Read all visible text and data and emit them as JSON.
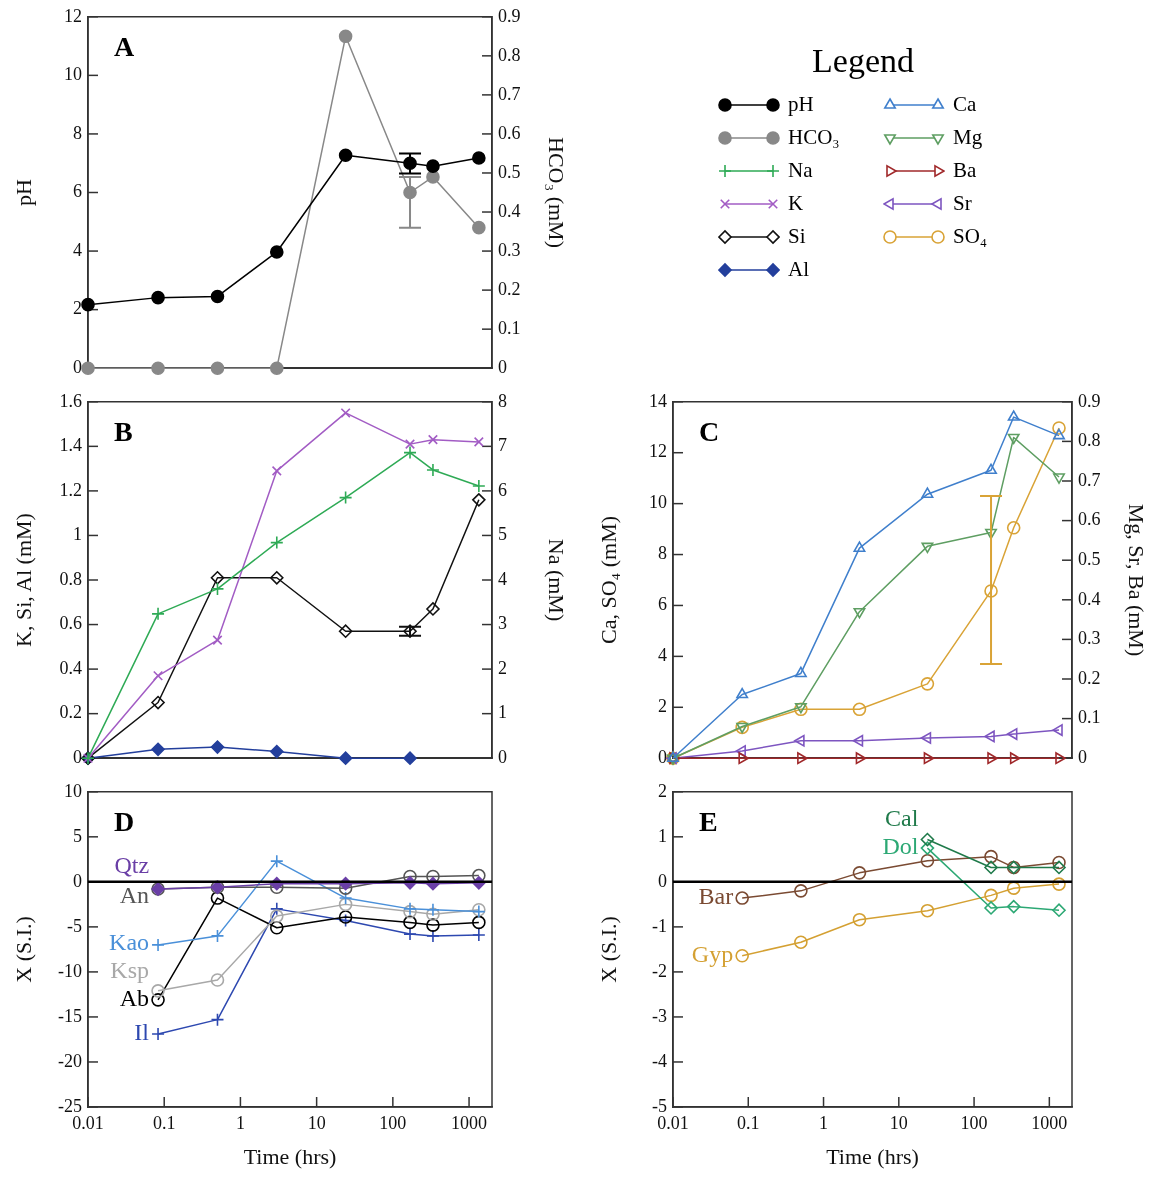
{
  "chart_data": [
    {
      "type": "line",
      "title": "A",
      "ylabel": "pH",
      "y2label": "HCO₃ (mM)",
      "legend": "right",
      "legend_title": "Legend",
      "log": "x",
      "tick_labels": "y",
      "x": [
        0.01,
        0.083,
        0.5,
        3,
        24,
        168,
        336,
        1344
      ],
      "xlim": [
        0.01,
        2000
      ],
      "xticks": [
        0.01,
        0.1,
        1,
        10,
        100,
        1000
      ],
      "ylim": [
        0,
        12
      ],
      "yticks": [
        0,
        2,
        4,
        6,
        8,
        10,
        12
      ],
      "y2lim": [
        0,
        0.9
      ],
      "y2ticks": [
        0,
        0.1,
        0.2,
        0.3,
        0.4,
        0.5,
        0.6,
        0.7,
        0.8,
        0.9
      ],
      "series": [
        {
          "name": "pH",
          "color": "#000000",
          "marker": "circle",
          "values": [
            2.17,
            2.41,
            2.45,
            3.97,
            7.27,
            7.0,
            6.9,
            7.18
          ],
          "errors": [
            null,
            null,
            null,
            null,
            null,
            [
              6.65,
              7.33
            ],
            null,
            null
          ]
        },
        {
          "name": "HCO₃",
          "color": "#888888",
          "marker": "circle",
          "axis": "y2",
          "values": [
            0,
            0,
            0,
            0,
            0.85,
            0.45,
            0.49,
            0.36
          ],
          "errors": [
            null,
            null,
            null,
            null,
            null,
            [
              0.36,
              0.49
            ],
            null,
            null
          ]
        }
      ]
    },
    {
      "type": "line",
      "title": "B",
      "ylabel": "K, Si, Al (mM)",
      "y2label": "Na (mM)",
      "legend": "top right",
      "log": "x",
      "tick_labels": "y",
      "x": [
        0.01,
        0.083,
        0.5,
        3,
        24,
        168,
        336,
        1344
      ],
      "xlim": [
        0.01,
        2000
      ],
      "xticks": [
        0.01,
        0.1,
        1,
        10,
        100,
        1000
      ],
      "ylim": [
        0,
        1.6
      ],
      "yticks": [
        0,
        0.2,
        0.4,
        0.6,
        0.8,
        1,
        1.2,
        1.4,
        1.6
      ],
      "y2lim": [
        0,
        8
      ],
      "y2ticks": [
        0,
        1,
        2,
        3,
        4,
        5,
        6,
        7,
        8
      ],
      "series": [
        {
          "name": "Na",
          "color": "#2eaa55",
          "marker": "cross",
          "axis": "y2",
          "values": [
            0,
            3.24,
            3.8,
            4.84,
            5.85,
            6.86,
            6.47,
            6.11
          ]
        },
        {
          "name": "K",
          "color": "#a25cc4",
          "marker": "x",
          "values": [
            0,
            0.37,
            0.53,
            1.29,
            1.55,
            1.41,
            1.43,
            1.42
          ]
        },
        {
          "name": "Si",
          "color": "#111111",
          "marker": "diamond-open",
          "values": [
            0,
            0.25,
            0.81,
            0.81,
            0.57,
            0.57,
            0.67,
            1.16
          ],
          "errors": [
            null,
            null,
            null,
            null,
            null,
            [
              0.55,
              0.59
            ],
            null,
            null
          ]
        },
        {
          "name": "Al",
          "color": "#233f9c",
          "marker": "diamond",
          "values": [
            0,
            0.04,
            0.05,
            0.03,
            0,
            0,
            null,
            null
          ]
        }
      ]
    },
    {
      "type": "line",
      "title": "C",
      "ylabel": "Ca, SO₄ (mM)",
      "y2label": "Mg, Sr, Ba (mM)",
      "legend": "top",
      "log": "x",
      "tick_labels": "y",
      "x": [
        0.01,
        0.083,
        0.5,
        3,
        24,
        168,
        336,
        1344
      ],
      "xlim": [
        0.01,
        2000
      ],
      "xticks": [
        0.01,
        0.1,
        1,
        10,
        100,
        1000
      ],
      "ylim": [
        0,
        14
      ],
      "yticks": [
        0,
        2,
        4,
        6,
        8,
        10,
        12,
        14
      ],
      "y2lim": [
        0,
        0.9
      ],
      "y2ticks": [
        0,
        0.1,
        0.2,
        0.3,
        0.4,
        0.5,
        0.6,
        0.7,
        0.8,
        0.9
      ],
      "series": [
        {
          "name": "Ca",
          "color": "#3f7fcc",
          "marker": "triangle",
          "values": [
            0,
            2.5,
            3.33,
            8.25,
            10.37,
            11.31,
            13.4,
            12.67
          ]
        },
        {
          "name": "Mg",
          "color": "#5e9e62",
          "marker": "triangle-down",
          "axis": "y2",
          "values": [
            0,
            0.08,
            0.13,
            0.37,
            0.535,
            0.57,
            0.81,
            0.71
          ]
        },
        {
          "name": "Ba",
          "color": "#a0282a",
          "marker": "triangle-right",
          "axis": "y2",
          "values": [
            0,
            0,
            0,
            0,
            0,
            0,
            0,
            0
          ]
        },
        {
          "name": "Sr",
          "color": "#7d55c0",
          "marker": "triangle-left",
          "axis": "y2",
          "values": [
            0,
            0.018,
            0.044,
            0.044,
            0.051,
            0.055,
            0.061,
            0.071
          ]
        },
        {
          "name": "SO₄",
          "color": "#d9a336",
          "marker": "circle-open",
          "values": [
            0,
            1.21,
            1.92,
            1.92,
            2.92,
            6.57,
            9.05,
            12.97
          ],
          "errors": [
            null,
            null,
            null,
            null,
            null,
            [
              3.7,
              10.3
            ],
            null,
            null
          ]
        }
      ]
    },
    {
      "type": "line",
      "title": "D",
      "xlabel": "Time (hrs)",
      "ylabel": "X (S.I.)",
      "log": "x",
      "x": [
        0.083,
        0.5,
        3,
        24,
        168,
        336,
        1344
      ],
      "xlim": [
        0.01,
        2000
      ],
      "xticks": [
        0.01,
        0.1,
        1,
        10,
        100,
        1000
      ],
      "ylim": [
        -25,
        10
      ],
      "yticks": [
        -25,
        -20,
        -15,
        -10,
        -5,
        0,
        5,
        10
      ],
      "ref_lines": [
        {
          "axis": "y",
          "value": 0,
          "color": "#000000"
        }
      ],
      "series": [
        {
          "name": "Qtz",
          "color": "#6a3fa6",
          "marker": "diamond",
          "values": [
            -0.8,
            -0.6,
            -0.2,
            -0.2,
            -0.1,
            -0.2,
            -0.1
          ]
        },
        {
          "name": "An",
          "color": "#555555",
          "marker": "circle-open",
          "values": [
            -0.8,
            -0.6,
            -0.6,
            -0.7,
            0.6,
            0.6,
            0.7
          ]
        },
        {
          "name": "Kao",
          "color": "#4a90d9",
          "marker": "cross",
          "values": [
            -7.0,
            -6.0,
            2.3,
            -1.8,
            -3.0,
            -3.1,
            -3.3
          ]
        },
        {
          "name": "Ksp",
          "color": "#a8a8a8",
          "marker": "circle-open",
          "values": [
            -12.1,
            -10.9,
            -3.8,
            -2.5,
            -3.3,
            -3.6,
            -3.1
          ]
        },
        {
          "name": "Ab",
          "color": "#000000",
          "marker": "circle-open",
          "values": [
            -13.1,
            -1.8,
            -5.1,
            -3.9,
            -4.5,
            -4.8,
            -4.5
          ]
        },
        {
          "name": "Il",
          "color": "#2d48b0",
          "marker": "cross",
          "values": [
            -16.9,
            -15.3,
            -3.0,
            -4.3,
            -5.8,
            -6.0,
            -5.9
          ]
        }
      ]
    },
    {
      "type": "line",
      "title": "E",
      "xlabel": "Time (hrs)",
      "ylabel": "X (S.I.)",
      "log": "x",
      "x": [
        0.083,
        0.5,
        3,
        24,
        168,
        336,
        1344
      ],
      "xlim": [
        0.01,
        2000
      ],
      "xticks": [
        0.01,
        0.1,
        1,
        10,
        100,
        1000
      ],
      "ylim": [
        -5,
        2
      ],
      "yticks": [
        -5,
        -4,
        -3,
        -2,
        -1,
        0,
        1,
        2
      ],
      "ref_lines": [
        {
          "axis": "y",
          "value": 0,
          "color": "#000000"
        }
      ],
      "series": [
        {
          "name": "Cal",
          "color": "#1f7a4a",
          "marker": "diamond-open",
          "values": [
            null,
            null,
            null,
            0.94,
            0.32,
            0.32,
            0.32
          ]
        },
        {
          "name": "Dol",
          "color": "#2ca874",
          "marker": "diamond-open",
          "values": [
            null,
            null,
            null,
            0.75,
            -0.58,
            -0.55,
            -0.63
          ]
        },
        {
          "name": "Bar",
          "color": "#7a4a32",
          "marker": "circle-open",
          "values": [
            -0.36,
            -0.2,
            0.2,
            0.47,
            0.56,
            0.32,
            0.43
          ]
        },
        {
          "name": "Gyp",
          "color": "#d4a032",
          "marker": "circle-open",
          "values": [
            -1.64,
            -1.34,
            -0.84,
            -0.64,
            -0.3,
            -0.14,
            -0.05
          ]
        }
      ]
    }
  ]
}
